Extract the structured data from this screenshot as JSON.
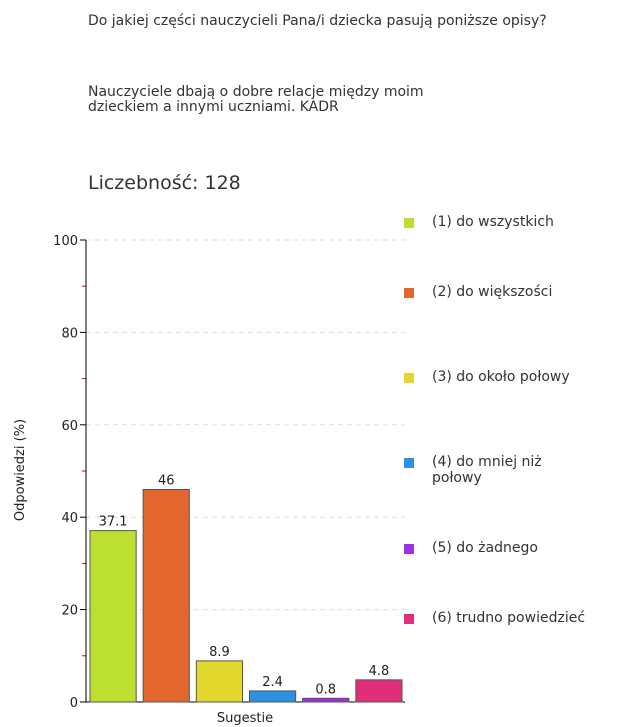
{
  "chart_data": {
    "type": "bar",
    "title": "Do jakiej części nauczycieli Pana/i dziecka pasują poniższe opisy?",
    "subtitle": "Nauczyciele dbają o dobre relacje między moim dzieckiem a innymi uczniami.  KADR",
    "count_label": "Liczebność: 128",
    "x_label": "Sugestie",
    "y_label": "Odpowiedzi (%)",
    "ylim": [
      0,
      100
    ],
    "yticks": [
      0,
      20,
      40,
      60,
      80,
      100
    ],
    "grid": true,
    "series": [
      {
        "name": "(1) do wszystkich",
        "color": "#bde030",
        "values": [
          37.1
        ]
      },
      {
        "name": "(2) do większości",
        "color": "#e2662e",
        "values": [
          46
        ]
      },
      {
        "name": "(3) do około połowy",
        "color": "#e2d82e",
        "values": [
          8.9
        ]
      },
      {
        "name": "(4) do mniej niż połowy",
        "color": "#2e90e2",
        "values": [
          2.4
        ]
      },
      {
        "name": "(5) do żadnego",
        "color": "#a22ee2",
        "values": [
          0.8
        ]
      },
      {
        "name": "(6) trudno powiedzieć",
        "color": "#e22e7a",
        "values": [
          4.8
        ]
      }
    ]
  }
}
